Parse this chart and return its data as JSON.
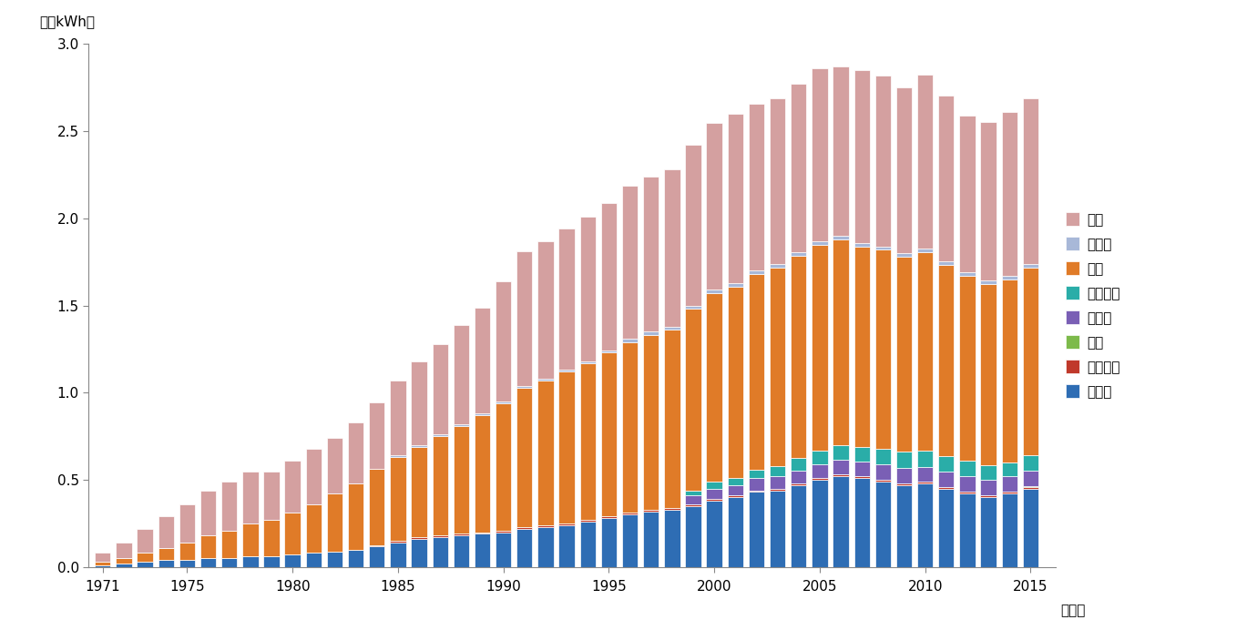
{
  "years": [
    1971,
    1972,
    1973,
    1974,
    1975,
    1976,
    1977,
    1978,
    1979,
    1980,
    1981,
    1982,
    1983,
    1984,
    1985,
    1986,
    1987,
    1988,
    1989,
    1990,
    1991,
    1992,
    1993,
    1994,
    1995,
    1996,
    1997,
    1998,
    1999,
    2000,
    2001,
    2002,
    2003,
    2004,
    2005,
    2006,
    2007,
    2008,
    2009,
    2010,
    2011,
    2012,
    2013,
    2014,
    2015
  ],
  "regions": [
    "アジア",
    "アフリカ",
    "中東",
    "ロシア",
    "他旧ソ連",
    "欧州",
    "中南米",
    "北米"
  ],
  "colors": [
    "#2e6db4",
    "#c0392b",
    "#7dba4b",
    "#7a5fb5",
    "#2aada8",
    "#e07b28",
    "#a8b8d8",
    "#d4a0a0"
  ],
  "data": {
    "北米": [
      0.05,
      0.09,
      0.14,
      0.18,
      0.22,
      0.26,
      0.28,
      0.3,
      0.28,
      0.3,
      0.32,
      0.32,
      0.35,
      0.38,
      0.43,
      0.48,
      0.52,
      0.57,
      0.61,
      0.69,
      0.77,
      0.79,
      0.81,
      0.83,
      0.85,
      0.88,
      0.89,
      0.9,
      0.92,
      0.96,
      0.97,
      0.96,
      0.95,
      0.97,
      0.99,
      0.97,
      0.99,
      0.98,
      0.95,
      1.0,
      0.95,
      0.9,
      0.91,
      0.94,
      0.95
    ],
    "中南米": [
      0.0,
      0.0,
      0.0,
      0.0,
      0.0,
      0.0,
      0.0,
      0.0,
      0.0,
      0.0,
      0.0,
      0.0,
      0.0,
      0.0,
      0.01,
      0.01,
      0.01,
      0.01,
      0.01,
      0.01,
      0.01,
      0.01,
      0.01,
      0.01,
      0.01,
      0.02,
      0.02,
      0.02,
      0.02,
      0.02,
      0.02,
      0.02,
      0.02,
      0.02,
      0.02,
      0.02,
      0.02,
      0.02,
      0.02,
      0.02,
      0.02,
      0.02,
      0.02,
      0.02,
      0.02
    ],
    "欧州": [
      0.02,
      0.03,
      0.05,
      0.07,
      0.1,
      0.13,
      0.16,
      0.19,
      0.21,
      0.24,
      0.28,
      0.33,
      0.38,
      0.44,
      0.48,
      0.52,
      0.57,
      0.62,
      0.67,
      0.73,
      0.8,
      0.83,
      0.87,
      0.9,
      0.94,
      0.98,
      1.0,
      1.02,
      1.04,
      1.08,
      1.1,
      1.12,
      1.14,
      1.16,
      1.18,
      1.18,
      1.15,
      1.14,
      1.12,
      1.14,
      1.1,
      1.06,
      1.04,
      1.05,
      1.08
    ],
    "他旧ソ連": [
      0.0,
      0.0,
      0.0,
      0.0,
      0.0,
      0.0,
      0.0,
      0.0,
      0.0,
      0.0,
      0.0,
      0.0,
      0.0,
      0.0,
      0.0,
      0.0,
      0.0,
      0.0,
      0.0,
      0.0,
      0.0,
      0.0,
      0.0,
      0.0,
      0.0,
      0.0,
      0.0,
      0.0,
      0.03,
      0.04,
      0.04,
      0.05,
      0.06,
      0.07,
      0.08,
      0.085,
      0.085,
      0.09,
      0.09,
      0.09,
      0.09,
      0.09,
      0.085,
      0.08,
      0.085
    ],
    "ロシア": [
      0.0,
      0.0,
      0.0,
      0.0,
      0.0,
      0.0,
      0.0,
      0.0,
      0.0,
      0.0,
      0.0,
      0.0,
      0.0,
      0.0,
      0.0,
      0.0,
      0.0,
      0.0,
      0.0,
      0.0,
      0.0,
      0.0,
      0.0,
      0.0,
      0.0,
      0.0,
      0.0,
      0.0,
      0.05,
      0.06,
      0.06,
      0.07,
      0.07,
      0.075,
      0.08,
      0.085,
      0.085,
      0.09,
      0.09,
      0.085,
      0.085,
      0.09,
      0.09,
      0.09,
      0.09
    ],
    "中東": [
      0.0,
      0.0,
      0.0,
      0.0,
      0.0,
      0.0,
      0.0,
      0.0,
      0.0,
      0.0,
      0.0,
      0.0,
      0.0,
      0.0,
      0.0,
      0.0,
      0.0,
      0.0,
      0.0,
      0.0,
      0.0,
      0.0,
      0.0,
      0.0,
      0.0,
      0.0,
      0.0,
      0.0,
      0.0,
      0.0,
      0.0,
      0.0,
      0.0,
      0.0,
      0.0,
      0.0,
      0.0,
      0.0,
      0.0,
      0.0,
      0.0,
      0.0,
      0.0,
      0.0,
      0.005
    ],
    "アフリカ": [
      0.0,
      0.0,
      0.0,
      0.0,
      0.0,
      0.0,
      0.0,
      0.0,
      0.0,
      0.0,
      0.0,
      0.0,
      0.0,
      0.005,
      0.01,
      0.01,
      0.01,
      0.01,
      0.01,
      0.01,
      0.01,
      0.01,
      0.01,
      0.01,
      0.01,
      0.01,
      0.01,
      0.01,
      0.01,
      0.01,
      0.01,
      0.01,
      0.01,
      0.01,
      0.01,
      0.01,
      0.01,
      0.01,
      0.01,
      0.01,
      0.01,
      0.01,
      0.01,
      0.01,
      0.01
    ],
    "アジア": [
      0.01,
      0.02,
      0.03,
      0.04,
      0.04,
      0.05,
      0.05,
      0.06,
      0.06,
      0.07,
      0.08,
      0.09,
      0.1,
      0.12,
      0.14,
      0.16,
      0.17,
      0.18,
      0.19,
      0.2,
      0.22,
      0.23,
      0.24,
      0.26,
      0.28,
      0.3,
      0.32,
      0.33,
      0.35,
      0.38,
      0.4,
      0.43,
      0.44,
      0.47,
      0.5,
      0.52,
      0.51,
      0.49,
      0.47,
      0.48,
      0.45,
      0.42,
      0.4,
      0.42,
      0.45
    ]
  },
  "stack_order": [
    "アジア",
    "アフリカ",
    "中東",
    "ロシア",
    "他旧ソ連",
    "欧州",
    "中南米",
    "北米"
  ],
  "legend_order": [
    "北米",
    "中南米",
    "欧州",
    "他旧ソ連",
    "ロシア",
    "中東",
    "アフリカ",
    "アジア"
  ],
  "colors_map": {
    "アジア": "#2e6db4",
    "アフリカ": "#c0392b",
    "中東": "#7dba4b",
    "ロシア": "#7a5fb5",
    "他旧ソ連": "#2aada8",
    "欧州": "#e07b28",
    "中南米": "#a8b8d8",
    "北米": "#d4a0a0"
  },
  "ylabel": "（兆kWh）",
  "xlabel": "（年）",
  "ylim": [
    0.0,
    3.0
  ],
  "yticks": [
    0.0,
    0.5,
    1.0,
    1.5,
    2.0,
    2.5,
    3.0
  ],
  "xticks": [
    1971,
    1975,
    1980,
    1985,
    1990,
    1995,
    2000,
    2005,
    2010,
    2015
  ]
}
